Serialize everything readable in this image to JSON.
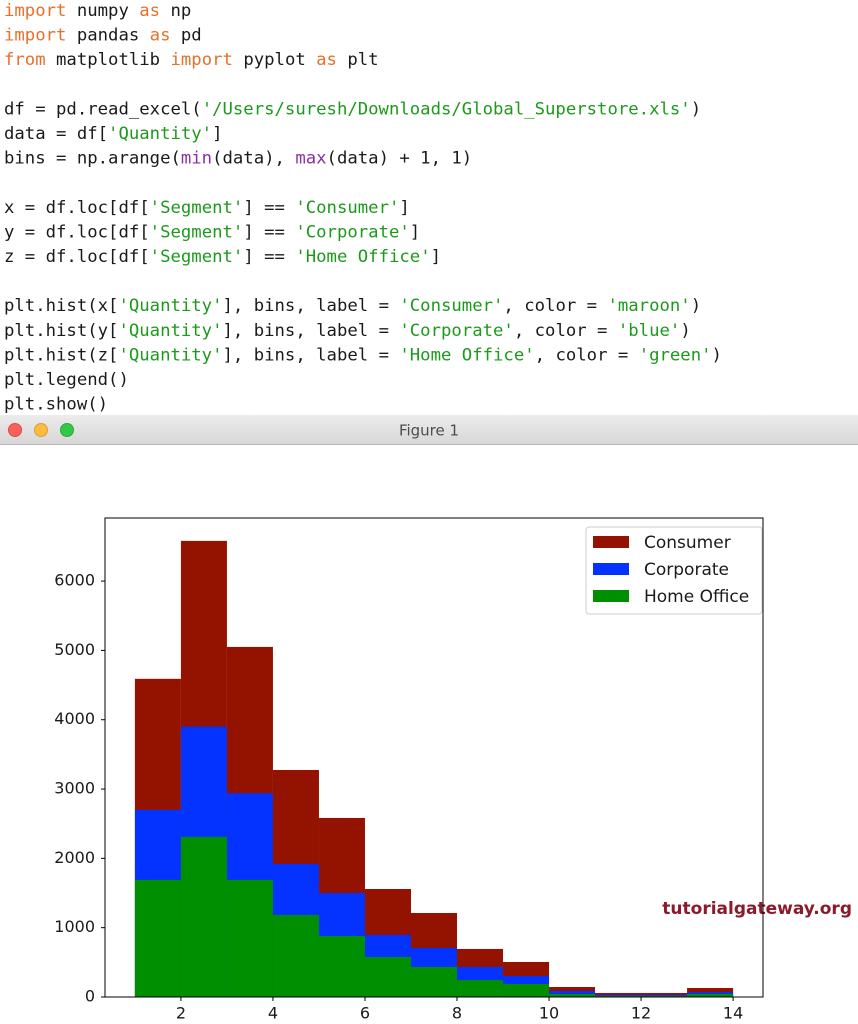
{
  "code": {
    "lines": [
      [
        {
          "text": "import",
          "color": "#e8702a"
        },
        {
          "text": " numpy ",
          "color": "#1a1a1a"
        },
        {
          "text": "as",
          "color": "#e8702a"
        },
        {
          "text": " np",
          "color": "#1a1a1a"
        }
      ],
      [
        {
          "text": "import",
          "color": "#e8702a"
        },
        {
          "text": " pandas ",
          "color": "#1a1a1a"
        },
        {
          "text": "as",
          "color": "#e8702a"
        },
        {
          "text": " pd",
          "color": "#1a1a1a"
        }
      ],
      [
        {
          "text": "from",
          "color": "#e8702a"
        },
        {
          "text": " matplotlib ",
          "color": "#1a1a1a"
        },
        {
          "text": "import",
          "color": "#e8702a"
        },
        {
          "text": " pyplot ",
          "color": "#1a1a1a"
        },
        {
          "text": "as",
          "color": "#e8702a"
        },
        {
          "text": " plt",
          "color": "#1a1a1a"
        }
      ],
      [],
      [
        {
          "text": "df = pd.read_excel(",
          "color": "#1a1a1a"
        },
        {
          "text": "'/Users/suresh/Downloads/Global_Superstore.xls'",
          "color": "#1c9a1c"
        },
        {
          "text": ")",
          "color": "#1a1a1a"
        }
      ],
      [
        {
          "text": "data = df[",
          "color": "#1a1a1a"
        },
        {
          "text": "'Quantity'",
          "color": "#1c9a1c"
        },
        {
          "text": "]",
          "color": "#1a1a1a"
        }
      ],
      [
        {
          "text": "bins = np.arange(",
          "color": "#1a1a1a"
        },
        {
          "text": "min",
          "color": "#8b2fa8"
        },
        {
          "text": "(data), ",
          "color": "#1a1a1a"
        },
        {
          "text": "max",
          "color": "#8b2fa8"
        },
        {
          "text": "(data) + 1, 1)",
          "color": "#1a1a1a"
        }
      ],
      [],
      [
        {
          "text": "x = df.loc[df[",
          "color": "#1a1a1a"
        },
        {
          "text": "'Segment'",
          "color": "#1c9a1c"
        },
        {
          "text": "] == ",
          "color": "#1a1a1a"
        },
        {
          "text": "'Consumer'",
          "color": "#1c9a1c"
        },
        {
          "text": "]",
          "color": "#1a1a1a"
        }
      ],
      [
        {
          "text": "y = df.loc[df[",
          "color": "#1a1a1a"
        },
        {
          "text": "'Segment'",
          "color": "#1c9a1c"
        },
        {
          "text": "] == ",
          "color": "#1a1a1a"
        },
        {
          "text": "'Corporate'",
          "color": "#1c9a1c"
        },
        {
          "text": "]",
          "color": "#1a1a1a"
        }
      ],
      [
        {
          "text": "z = df.loc[df[",
          "color": "#1a1a1a"
        },
        {
          "text": "'Segment'",
          "color": "#1c9a1c"
        },
        {
          "text": "] == ",
          "color": "#1a1a1a"
        },
        {
          "text": "'Home Office'",
          "color": "#1c9a1c"
        },
        {
          "text": "]",
          "color": "#1a1a1a"
        }
      ],
      [],
      [
        {
          "text": "plt.hist(x[",
          "color": "#1a1a1a"
        },
        {
          "text": "'Quantity'",
          "color": "#1c9a1c"
        },
        {
          "text": "], bins, label = ",
          "color": "#1a1a1a"
        },
        {
          "text": "'Consumer'",
          "color": "#1c9a1c"
        },
        {
          "text": ", color = ",
          "color": "#1a1a1a"
        },
        {
          "text": "'maroon'",
          "color": "#1c9a1c"
        },
        {
          "text": ")",
          "color": "#1a1a1a"
        }
      ],
      [
        {
          "text": "plt.hist(y[",
          "color": "#1a1a1a"
        },
        {
          "text": "'Quantity'",
          "color": "#1c9a1c"
        },
        {
          "text": "], bins, label = ",
          "color": "#1a1a1a"
        },
        {
          "text": "'Corporate'",
          "color": "#1c9a1c"
        },
        {
          "text": ", color = ",
          "color": "#1a1a1a"
        },
        {
          "text": "'blue'",
          "color": "#1c9a1c"
        },
        {
          "text": ")",
          "color": "#1a1a1a"
        }
      ],
      [
        {
          "text": "plt.hist(z[",
          "color": "#1a1a1a"
        },
        {
          "text": "'Quantity'",
          "color": "#1c9a1c"
        },
        {
          "text": "], bins, label = ",
          "color": "#1a1a1a"
        },
        {
          "text": "'Home Office'",
          "color": "#1c9a1c"
        },
        {
          "text": ", color = ",
          "color": "#1a1a1a"
        },
        {
          "text": "'green'",
          "color": "#1c9a1c"
        },
        {
          "text": ")",
          "color": "#1a1a1a"
        }
      ],
      [
        {
          "text": "plt.legend()",
          "color": "#1a1a1a"
        }
      ],
      [
        {
          "text": "plt.show()",
          "color": "#1a1a1a"
        }
      ]
    ]
  },
  "window": {
    "title": "Figure 1"
  },
  "watermark": "tutorialgateway.org",
  "chart_data": {
    "type": "histogram",
    "bins": [
      1,
      2,
      3,
      4,
      5,
      6,
      7,
      8,
      9,
      10,
      11,
      12,
      13,
      14
    ],
    "series": [
      {
        "name": "Consumer",
        "color": "#941200",
        "values": [
          4590,
          6580,
          5050,
          3275,
          2583,
          1558,
          1212,
          693,
          505,
          144,
          58,
          58,
          130
        ]
      },
      {
        "name": "Corporate",
        "color": "#0433ff",
        "values": [
          2700,
          3900,
          2940,
          1920,
          1500,
          895,
          707,
          433,
          303,
          87,
          30,
          30,
          72
        ]
      },
      {
        "name": "Home Office",
        "color": "#008f00",
        "values": [
          1690,
          2310,
          1690,
          1183,
          880,
          577,
          433,
          245,
          188,
          43,
          15,
          15,
          43
        ]
      }
    ],
    "xlim": [
      0.35,
      14.65
    ],
    "xticks": [
      2,
      4,
      6,
      8,
      10,
      12,
      14
    ],
    "ylim": [
      0,
      6910
    ],
    "yticks": [
      0,
      1000,
      2000,
      3000,
      4000,
      5000,
      6000
    ],
    "legend": "upper right"
  }
}
